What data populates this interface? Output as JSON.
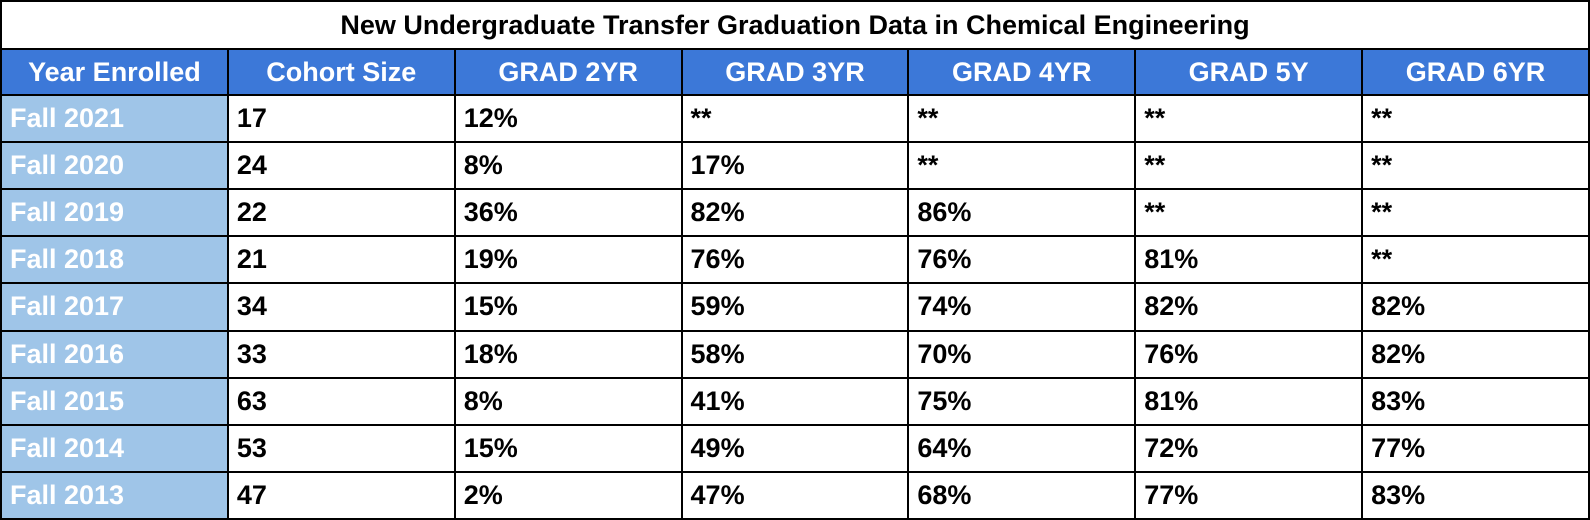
{
  "table": {
    "title": "New Undergraduate Transfer Graduation Data in Chemical Engineering",
    "header": [
      "Year Enrolled",
      "Cohort Size",
      "GRAD 2YR",
      "GRAD 3YR",
      "GRAD 4YR",
      "GRAD 5Y",
      "GRAD 6YR"
    ],
    "rows": [
      [
        "Fall 2021",
        "17",
        "12%",
        "**",
        "**",
        "**",
        "**"
      ],
      [
        "Fall 2020",
        "24",
        "8%",
        "17%",
        "**",
        "**",
        "**"
      ],
      [
        "Fall 2019",
        "22",
        "36%",
        "82%",
        "86%",
        "**",
        "**"
      ],
      [
        "Fall 2018",
        "21",
        "19%",
        "76%",
        "76%",
        "81%",
        "**"
      ],
      [
        "Fall 2017",
        "34",
        "15%",
        "59%",
        "74%",
        "82%",
        "82%"
      ],
      [
        "Fall 2016",
        "33",
        "18%",
        "58%",
        "70%",
        "76%",
        "82%"
      ],
      [
        "Fall 2015",
        "63",
        "8%",
        "41%",
        "75%",
        "81%",
        "83%"
      ],
      [
        "Fall 2014",
        "53",
        "15%",
        "49%",
        "64%",
        "72%",
        "77%"
      ],
      [
        "Fall 2013",
        "47",
        "2%",
        "47%",
        "68%",
        "77%",
        "83%"
      ]
    ]
  }
}
